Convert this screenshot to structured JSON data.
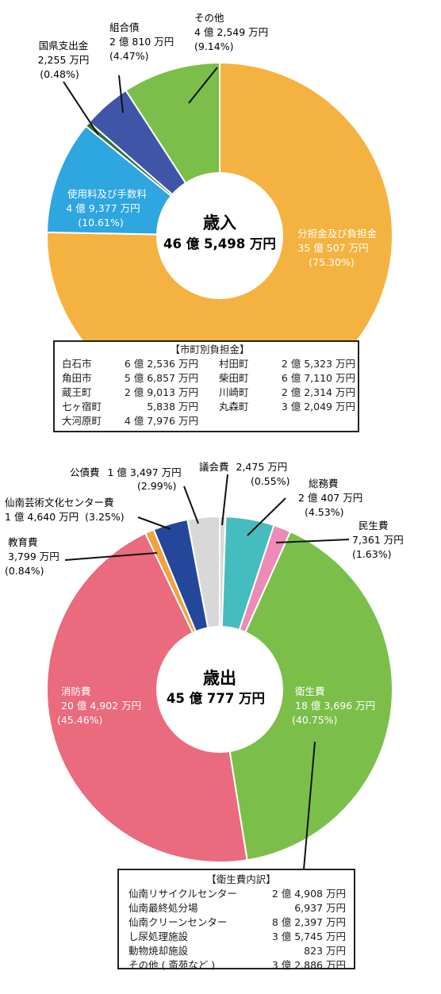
{
  "chart_data": [
    {
      "type": "pie",
      "title": "歳入",
      "total": "46 億 5,498 万円",
      "slices": [
        {
          "label": "分担金及び負担金",
          "amount": "35 億 507 万円",
          "percent_text": "(75.30%)",
          "value": 75.3,
          "color": "#f4b340"
        },
        {
          "label": "使用料及び手数料",
          "amount": "4 億 9,377 万円",
          "percent_text": "(10.61%)",
          "value": 10.61,
          "color": "#2ea6e0"
        },
        {
          "label": "国県支出金",
          "amount": "2,255 万円",
          "percent_text": "(0.48%)",
          "value": 0.48,
          "color": "#2c6e3a"
        },
        {
          "label": "組合債",
          "amount": "2 億 810 万円",
          "percent_text": "(4.47%)",
          "value": 4.47,
          "color": "#3f56a8"
        },
        {
          "label": "その他",
          "amount": "4 億 2,549 万円",
          "percent_text": "(9.14%)",
          "value": 9.14,
          "color": "#7bbf4a"
        }
      ]
    },
    {
      "type": "pie",
      "title": "歳出",
      "total": "45 億 777 万円",
      "slices": [
        {
          "label": "議会費",
          "amount": "2,475 万円",
          "percent_text": "(0.55%)",
          "value": 0.55,
          "color": "#d8d8d8"
        },
        {
          "label": "総務費",
          "amount": "2 億 407 万円",
          "percent_text": "(4.53%)",
          "value": 4.53,
          "color": "#45bcbd"
        },
        {
          "label": "民生費",
          "amount": "7,361 万円",
          "percent_text": "(1.63%)",
          "value": 1.63,
          "color": "#ec8bb7"
        },
        {
          "label": "衛生費",
          "amount": "18 億 3,696 万円",
          "percent_text": "(40.75%)",
          "value": 40.75,
          "color": "#7bbf4a"
        },
        {
          "label": "消防費",
          "amount": "20 億 4,902 万円",
          "percent_text": "(45.46%)",
          "value": 45.46,
          "color": "#ea6a7e"
        },
        {
          "label": "教育費",
          "amount": "3,799 万円",
          "percent_text": "(0.84%)",
          "value": 0.84,
          "color": "#f2a23a"
        },
        {
          "label": "仙南芸術文化センター費",
          "amount": "1 億 4,640 万円",
          "percent_text": "(3.25%)",
          "value": 3.25,
          "color": "#24479c"
        },
        {
          "label": "公債費",
          "amount": "1 億 3,497 万円",
          "percent_text": "(2.99%)",
          "value": 2.99,
          "color": "#d8d8d8"
        }
      ]
    }
  ],
  "municipal_box": {
    "title": "【市町別負担金】",
    "rows": [
      {
        "name1": "白石市",
        "amt1": "6 億 2,536 万円",
        "name2": "村田町",
        "amt2": "2 億 5,323 万円"
      },
      {
        "name1": "角田市",
        "amt1": "5 億 6,857 万円",
        "name2": "柴田町",
        "amt2": "6 億 7,110 万円"
      },
      {
        "name1": "蔵王町",
        "amt1": "2 億 9,013 万円",
        "name2": "川崎町",
        "amt2": "2 億 2,314 万円"
      },
      {
        "name1": "七ヶ宿町",
        "amt1": "5,838 万円",
        "name2": "丸森町",
        "amt2": "3 億 2,049 万円"
      },
      {
        "name1": "大河原町",
        "amt1": "4 億 7,976 万円",
        "name2": "",
        "amt2": ""
      }
    ]
  },
  "health_box": {
    "title": "【衛生費内訳】",
    "rows": [
      {
        "name": "仙南リサイクルセンター",
        "amt": "2 億 4,908 万円"
      },
      {
        "name": "仙南最終処分場",
        "amt": "6,937 万円"
      },
      {
        "name": "仙南クリーンセンター",
        "amt": "8 億 2,397 万円"
      },
      {
        "name": "し尿処理施設",
        "amt": "3 億 5,745 万円"
      },
      {
        "name": "動物焼却施設",
        "amt": "823 万円"
      },
      {
        "name": "その他 ( 斎苑など )",
        "amt": "3 億 2,886 万円"
      }
    ]
  }
}
